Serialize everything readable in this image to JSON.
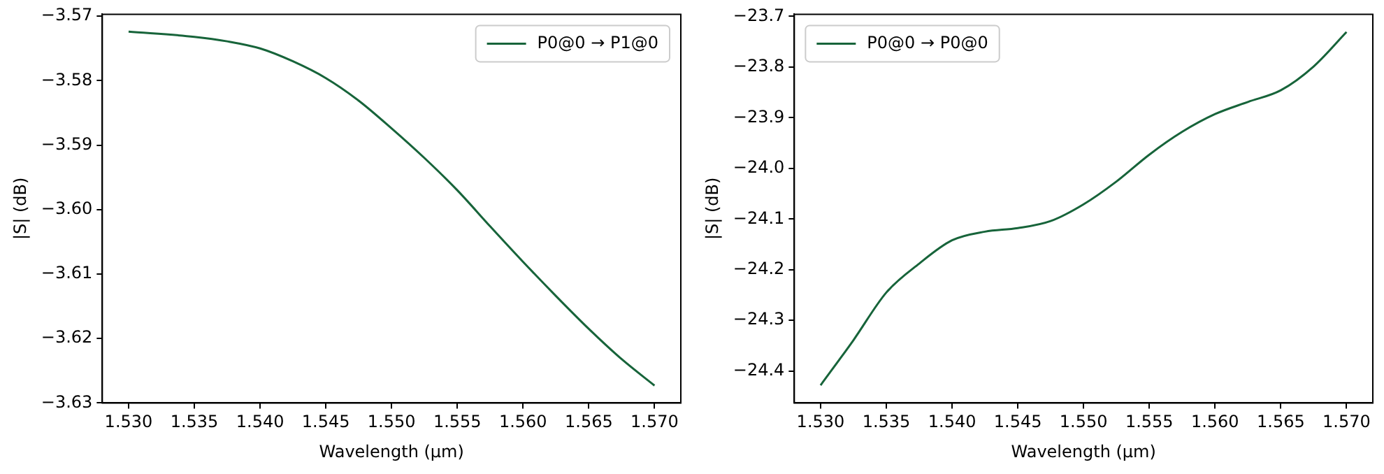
{
  "chart_data": [
    {
      "type": "line",
      "xlabel": "Wavelength (µm)",
      "ylabel": "|S| (dB)",
      "legend": "top right",
      "grid": false,
      "x": [
        1.53,
        1.535,
        1.5375,
        1.54,
        1.5425,
        1.545,
        1.5475,
        1.55,
        1.5525,
        1.555,
        1.5575,
        1.56,
        1.5625,
        1.565,
        1.5675,
        1.57
      ],
      "series": [
        {
          "name": "P0@0 → P1@0",
          "color": "#17643a",
          "values": [
            -3.5724,
            -3.5732,
            -3.5739,
            -3.575,
            -3.577,
            -3.5796,
            -3.5831,
            -3.5874,
            -3.592,
            -3.597,
            -3.6026,
            -3.6081,
            -3.6134,
            -3.6185,
            -3.6232,
            -3.6273
          ]
        }
      ],
      "xlim": [
        1.528,
        1.572
      ],
      "xticks": [
        {
          "value": 1.53,
          "label": "1.530"
        },
        {
          "value": 1.535,
          "label": "1.535"
        },
        {
          "value": 1.54,
          "label": "1.540"
        },
        {
          "value": 1.545,
          "label": "1.545"
        },
        {
          "value": 1.55,
          "label": "1.550"
        },
        {
          "value": 1.555,
          "label": "1.555"
        },
        {
          "value": 1.56,
          "label": "1.560"
        },
        {
          "value": 1.565,
          "label": "1.565"
        },
        {
          "value": 1.57,
          "label": "1.570"
        }
      ],
      "ylim": [
        -3.63,
        -3.5697
      ],
      "yticks": [
        {
          "value": -3.63,
          "label": "−3.63"
        },
        {
          "value": -3.62,
          "label": "−3.62"
        },
        {
          "value": -3.61,
          "label": "−3.61"
        },
        {
          "value": -3.6,
          "label": "−3.60"
        },
        {
          "value": -3.59,
          "label": "−3.59"
        },
        {
          "value": -3.58,
          "label": "−3.58"
        },
        {
          "value": -3.57,
          "label": "−3.57"
        }
      ]
    },
    {
      "type": "line",
      "xlabel": "Wavelength (µm)",
      "ylabel": "|S| (dB)",
      "legend": "top left",
      "grid": false,
      "x": [
        1.53,
        1.5325,
        1.535,
        1.5375,
        1.54,
        1.5425,
        1.545,
        1.5475,
        1.55,
        1.5525,
        1.555,
        1.5575,
        1.56,
        1.5625,
        1.565,
        1.5675,
        1.57
      ],
      "series": [
        {
          "name": "P0@0 → P0@0",
          "color": "#17643a",
          "values": [
            -24.428,
            -24.339,
            -24.245,
            -24.188,
            -24.142,
            -24.125,
            -24.118,
            -24.104,
            -24.071,
            -24.026,
            -23.973,
            -23.928,
            -23.893,
            -23.869,
            -23.846,
            -23.799,
            -23.731
          ]
        }
      ],
      "xlim": [
        1.528,
        1.572
      ],
      "xticks": [
        {
          "value": 1.53,
          "label": "1.530"
        },
        {
          "value": 1.535,
          "label": "1.535"
        },
        {
          "value": 1.54,
          "label": "1.540"
        },
        {
          "value": 1.545,
          "label": "1.545"
        },
        {
          "value": 1.55,
          "label": "1.550"
        },
        {
          "value": 1.555,
          "label": "1.555"
        },
        {
          "value": 1.56,
          "label": "1.560"
        },
        {
          "value": 1.565,
          "label": "1.565"
        },
        {
          "value": 1.57,
          "label": "1.570"
        }
      ],
      "ylim": [
        -24.463,
        -23.696
      ],
      "yticks": [
        {
          "value": -24.4,
          "label": "−24.4"
        },
        {
          "value": -24.3,
          "label": "−24.3"
        },
        {
          "value": -24.2,
          "label": "−24.2"
        },
        {
          "value": -24.1,
          "label": "−24.1"
        },
        {
          "value": -24.0,
          "label": "−24.0"
        },
        {
          "value": -23.9,
          "label": "−23.9"
        },
        {
          "value": -23.8,
          "label": "−23.8"
        },
        {
          "value": -23.7,
          "label": "−23.7"
        }
      ]
    }
  ]
}
